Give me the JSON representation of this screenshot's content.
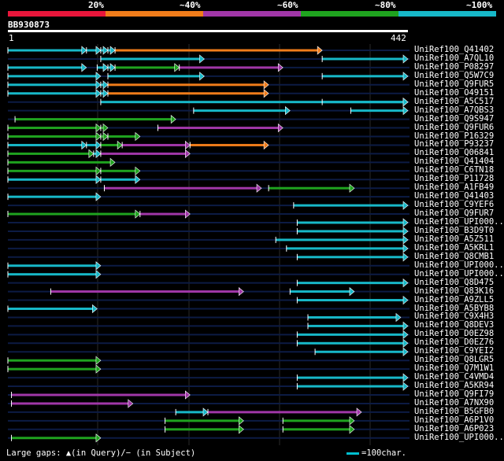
{
  "legend": {
    "labels": [
      "20%",
      "~40%",
      "~60%",
      "~80%",
      "~100%"
    ],
    "colors": [
      "#e8163b",
      "#f07c1a",
      "#a137a8",
      "#1fa31f",
      "#17b8c8"
    ]
  },
  "query": {
    "name": "BB930873",
    "start": "1",
    "end": "442"
  },
  "hits": [
    "UniRef100_Q41402",
    "UniRef100_A7QL10",
    "UniRef100_P08297",
    "UniRef100_Q5W7C9",
    "UniRef100_Q9FUR5",
    "UniRef100_O49151",
    "UniRef100_A5C517",
    "UniRef100_A7QBS3",
    "UniRef100_Q9S947",
    "UniRef100_Q9FUR6",
    "UniRef100_P16329",
    "UniRef100_P93237",
    "UniRef100_Q06841",
    "UniRef100_Q41404",
    "UniRef100_C6TN18",
    "UniRef100_P11728",
    "UniRef100_A1FB49",
    "UniRef100_Q41403",
    "UniRef100_C9YEF6",
    "UniRef100_Q9FUR7",
    "UniRef100_UPI000...",
    "UniRef100_B3D9T0",
    "UniRef100_A5Z511",
    "UniRef100_A5KRL1",
    "UniRef100_Q8CMB1",
    "UniRef100_UPI000...",
    "UniRef100_UPI000...",
    "UniRef100_Q8D475",
    "UniRef100_Q83K16",
    "UniRef100_A9ZLL5",
    "UniRef100_A5BYB8",
    "UniRef100_C9X4H3",
    "UniRef100_Q8DEV3",
    "UniRef100_D0EZ98",
    "UniRef100_D0EZ76",
    "UniRef100_C9YEI2",
    "UniRef100_Q8LGR5",
    "UniRef100_Q7M1W1",
    "UniRef100_C4VMD4",
    "UniRef100_A5KR94",
    "UniRef100_Q9FI79",
    "UniRef100_A7NX90",
    "UniRef100_B5GFB0",
    "UniRef100_A6P1V0",
    "UniRef100_A6P023",
    "UniRef100_UPI000..."
  ],
  "alignments": [
    [
      [
        "t",
        0,
        22
      ],
      [
        "t",
        22,
        26
      ],
      [
        "t",
        26,
        28
      ],
      [
        "t",
        28,
        30
      ],
      [
        "o",
        30,
        88
      ]
    ],
    [
      [
        "t",
        26,
        55
      ],
      [
        "t",
        88,
        112
      ]
    ],
    [
      [
        "t",
        0,
        22
      ],
      [
        "t",
        25,
        28
      ],
      [
        "t",
        28,
        30
      ],
      [
        "g",
        30,
        48
      ],
      [
        "p",
        48,
        77
      ]
    ],
    [
      [
        "t",
        0,
        26
      ],
      [
        "t",
        28,
        55
      ],
      [
        "t",
        88,
        112
      ]
    ],
    [
      [
        "t",
        0,
        26
      ],
      [
        "t",
        26,
        28
      ],
      [
        "o",
        28,
        73
      ]
    ],
    [
      [
        "t",
        0,
        26
      ],
      [
        "t",
        26,
        28
      ],
      [
        "o",
        28,
        73
      ]
    ],
    [
      [
        "t",
        26,
        112
      ],
      [
        "t",
        88,
        112
      ]
    ],
    [
      [
        "t",
        52,
        79
      ],
      [
        "t",
        96,
        112
      ]
    ],
    [
      [
        "g",
        2,
        47
      ]
    ],
    [
      [
        "g",
        0,
        26
      ],
      [
        "g",
        26,
        28
      ],
      [
        "p",
        42,
        77
      ]
    ],
    [
      [
        "g",
        0,
        26
      ],
      [
        "g",
        26,
        28
      ],
      [
        "g",
        28,
        37
      ]
    ],
    [
      [
        "t",
        0,
        22
      ],
      [
        "t",
        22,
        26
      ],
      [
        "g",
        26,
        32
      ],
      [
        "p",
        32,
        51
      ],
      [
        "o",
        51,
        73
      ]
    ],
    [
      [
        "g",
        0,
        24
      ],
      [
        "t",
        24,
        26
      ],
      [
        "p",
        26,
        51
      ]
    ],
    [
      [
        "g",
        0,
        30
      ]
    ],
    [
      [
        "g",
        0,
        26
      ],
      [
        "g",
        26,
        37
      ]
    ],
    [
      [
        "t",
        0,
        26
      ],
      [
        "t",
        26,
        37
      ]
    ],
    [
      [
        "p",
        27,
        71
      ],
      [
        "g",
        73,
        97
      ]
    ],
    [
      [
        "t",
        0,
        26
      ]
    ],
    [
      [
        "t",
        80,
        112
      ]
    ],
    [
      [
        "g",
        0,
        37
      ],
      [
        "p",
        37,
        51
      ]
    ],
    [
      [
        "t",
        81,
        112
      ]
    ],
    [
      [
        "t",
        81,
        112
      ]
    ],
    [
      [
        "t",
        75,
        112
      ]
    ],
    [
      [
        "t",
        78,
        112
      ]
    ],
    [
      [
        "t",
        81,
        112
      ]
    ],
    [
      [
        "t",
        0,
        26
      ]
    ],
    [
      [
        "t",
        0,
        26
      ]
    ],
    [
      [
        "t",
        81,
        112
      ]
    ],
    [
      [
        "p",
        12,
        66
      ],
      [
        "t",
        79,
        97
      ]
    ],
    [
      [
        "t",
        81,
        112
      ]
    ],
    [
      [
        "t",
        0,
        25
      ]
    ],
    [
      [
        "t",
        84,
        110
      ]
    ],
    [
      [
        "t",
        84,
        112
      ]
    ],
    [
      [
        "t",
        81,
        112
      ]
    ],
    [
      [
        "t",
        81,
        112
      ]
    ],
    [
      [
        "t",
        86,
        112
      ]
    ],
    [
      [
        "g",
        0,
        26
      ]
    ],
    [
      [
        "g",
        0,
        26
      ]
    ],
    [
      [
        "t",
        81,
        112
      ]
    ],
    [
      [
        "t",
        81,
        112
      ]
    ],
    [
      [
        "p",
        1,
        51
      ]
    ],
    [
      [
        "p",
        1,
        35
      ]
    ],
    [
      [
        "t",
        47,
        56
      ],
      [
        "p",
        56,
        99
      ]
    ],
    [
      [
        "g",
        44,
        66
      ],
      [
        "g",
        77,
        97
      ]
    ],
    [
      [
        "g",
        44,
        66
      ],
      [
        "g",
        77,
        97
      ]
    ],
    [
      [
        "g",
        1,
        26
      ]
    ]
  ],
  "seg_colors": {
    "t": "#17b8c8",
    "g": "#1fa31f",
    "p": "#a137a8",
    "o": "#f07c1a"
  },
  "footer": {
    "gaps_text": "Large gaps: ▲(in Query)/− (in Subject)",
    "scale_text": "=100char."
  }
}
